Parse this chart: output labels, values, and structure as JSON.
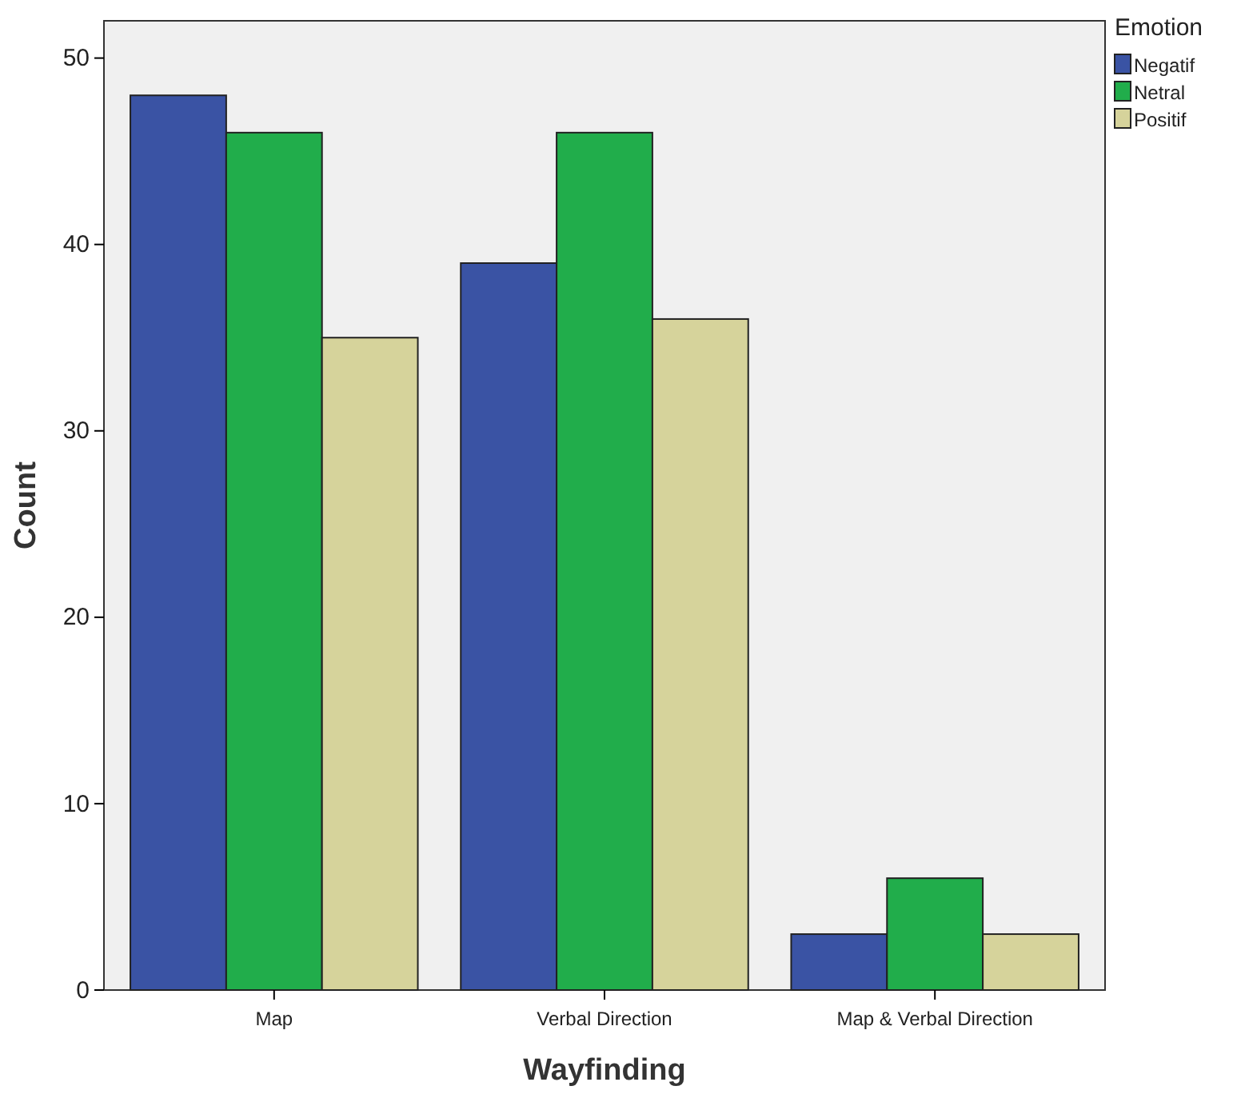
{
  "chart_data": {
    "type": "bar",
    "xlabel": "Wayfinding",
    "ylabel": "Count",
    "legend_title": "Emotion",
    "categories": [
      "Map",
      "Verbal Direction",
      "Map & Verbal Direction"
    ],
    "series": [
      {
        "name": "Negatif",
        "color": "#3a53a4",
        "values": [
          48,
          39,
          3
        ]
      },
      {
        "name": "Netral",
        "color": "#21ad4b",
        "values": [
          46,
          46,
          6
        ]
      },
      {
        "name": "Positif",
        "color": "#d6d39b",
        "values": [
          35,
          36,
          3
        ]
      }
    ],
    "ylim": [
      0,
      52
    ],
    "yticks": [
      0,
      10,
      20,
      30,
      40,
      50
    ],
    "grid": false,
    "legend": "top right"
  }
}
